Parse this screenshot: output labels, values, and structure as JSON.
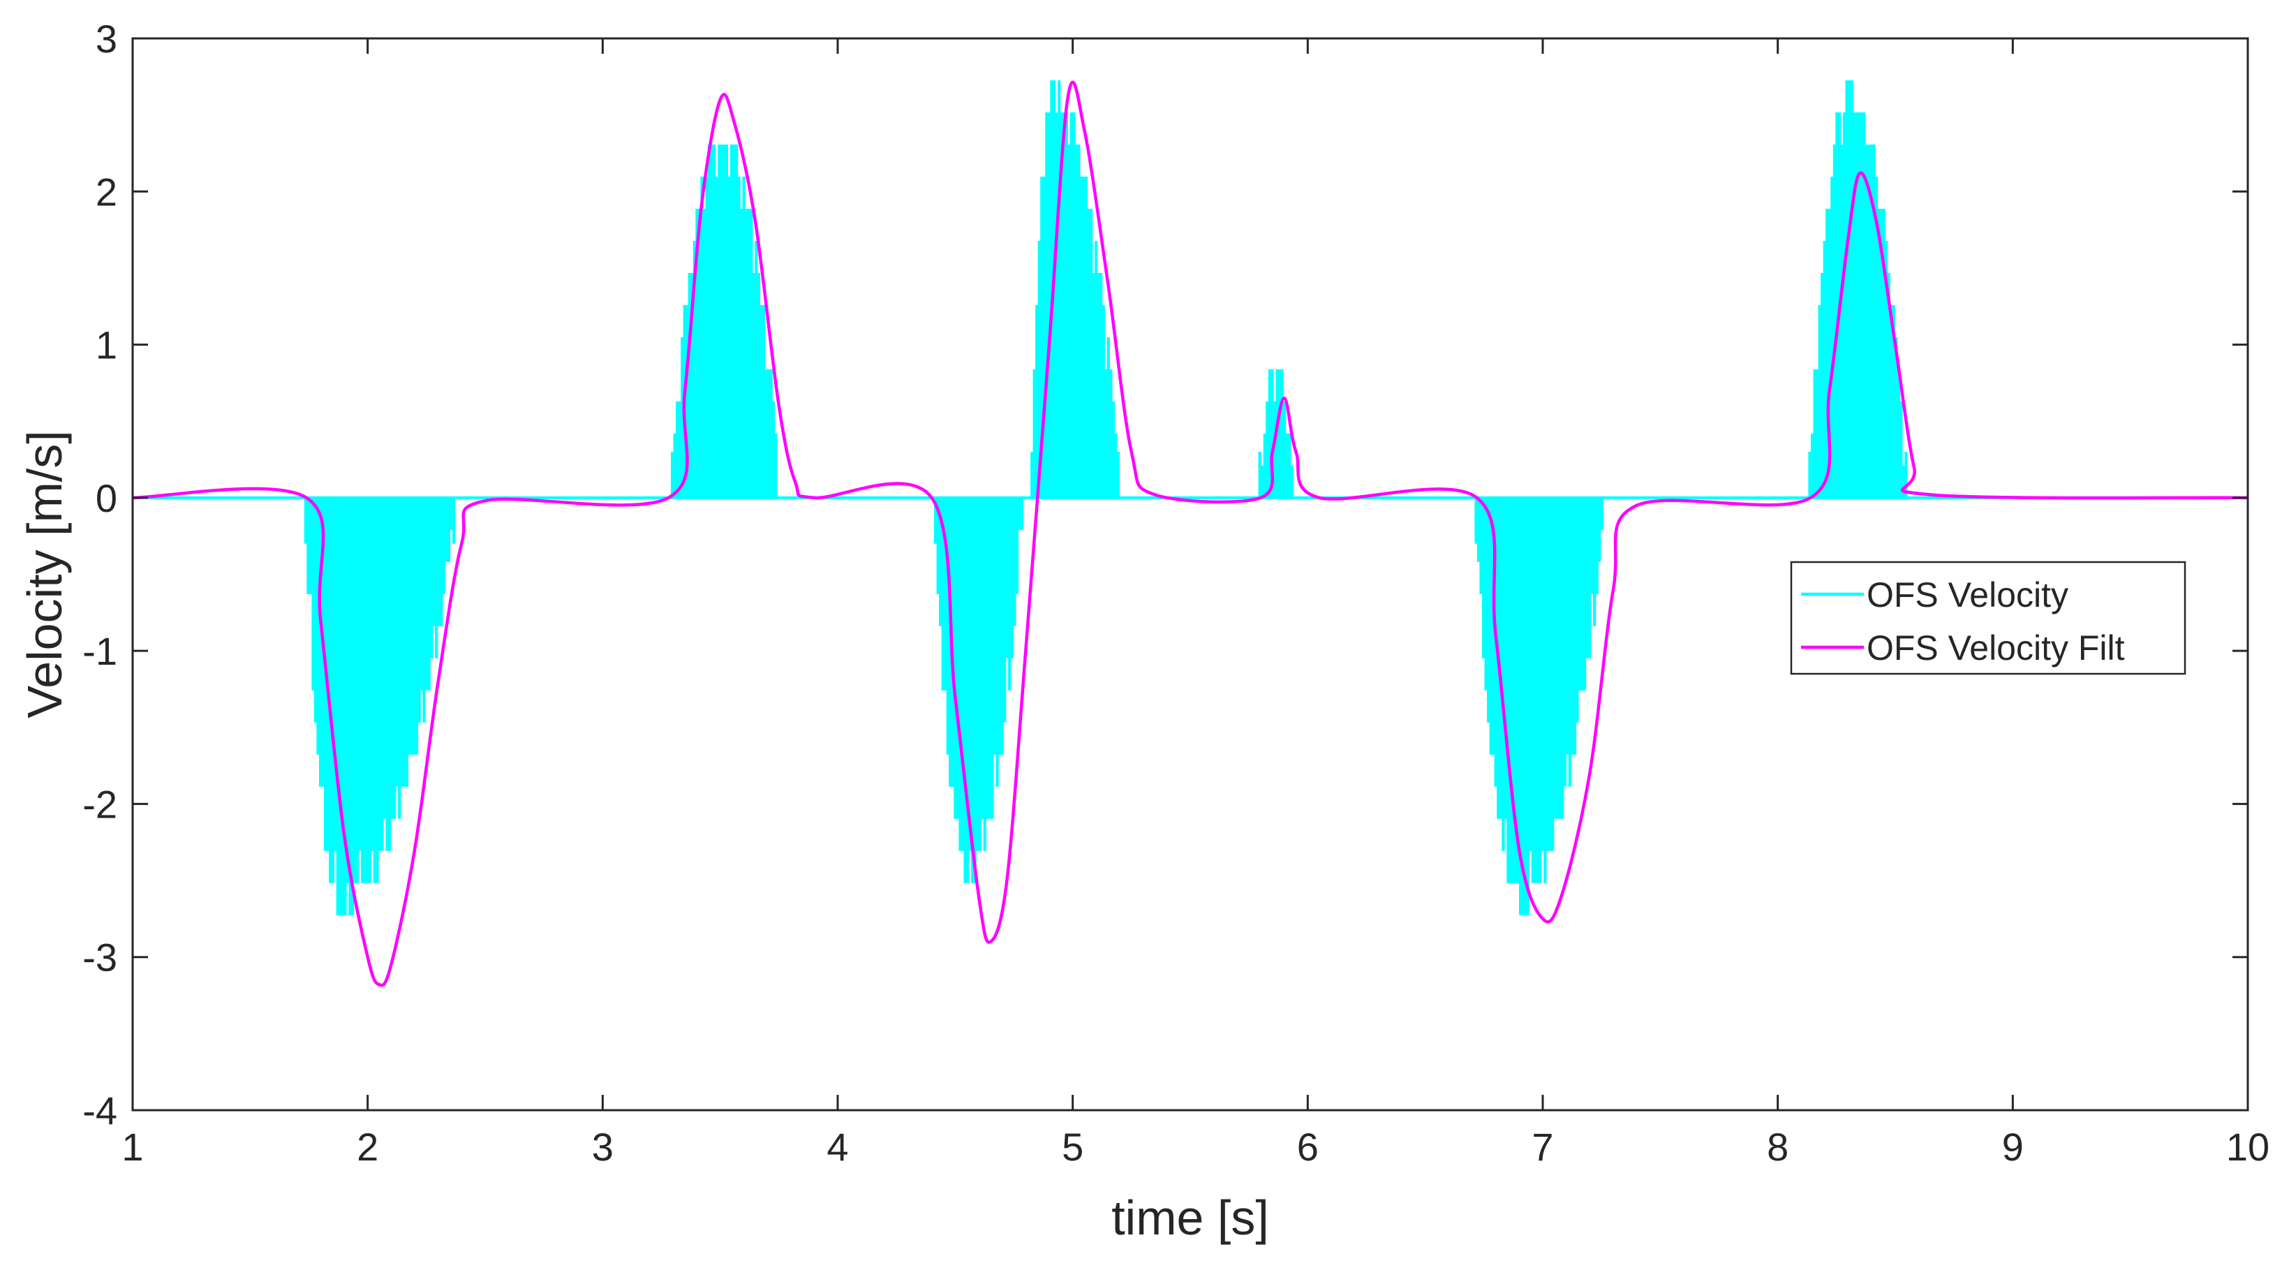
{
  "chart_data": {
    "type": "line",
    "title": "",
    "xlabel": "time [s]",
    "ylabel": "Velocity [m/s]",
    "xlim": [
      1,
      10
    ],
    "ylim": [
      -4,
      3
    ],
    "xticks": [
      1,
      2,
      3,
      4,
      5,
      6,
      7,
      8,
      9,
      10
    ],
    "xtick_labels": [
      "1",
      "2",
      "3",
      "4",
      "5",
      "6",
      "7",
      "8",
      "9",
      "10"
    ],
    "yticks": [
      -4,
      -3,
      -2,
      -1,
      0,
      1,
      2,
      3
    ],
    "ytick_labels": [
      "-4",
      "-3",
      "-2",
      "-1",
      "0",
      "1",
      "2",
      "3"
    ],
    "grid": false,
    "box": true,
    "legend_position": "right",
    "colors": {
      "raw": "#00FFFF",
      "filt": "#FF00FF",
      "axis": "#262626"
    },
    "series": [
      {
        "name": "OFS Velocity",
        "color": "#00FFFF",
        "kind": "raw-fill",
        "note_shape": "piecewise",
        "pulses": [
          {
            "t_start": 1.73,
            "t_end": 2.36,
            "peak": -2.65,
            "t_peak": 1.88
          },
          {
            "t_start": 3.29,
            "t_end": 3.74,
            "peak": 2.36,
            "t_peak": 3.5
          },
          {
            "t_start": 4.41,
            "t_end": 4.78,
            "peak": -2.45,
            "t_peak": 4.55
          },
          {
            "t_start": 4.82,
            "t_end": 5.19,
            "peak": 2.65,
            "t_peak": 4.91
          },
          {
            "t_start": 5.79,
            "t_end": 5.93,
            "peak": 0.88,
            "t_peak": 5.86
          },
          {
            "t_start": 6.71,
            "t_end": 7.25,
            "peak": -2.65,
            "t_peak": 6.9
          },
          {
            "t_start": 8.13,
            "t_end": 8.54,
            "peak": 2.65,
            "t_peak": 8.3
          }
        ]
      },
      {
        "name": "OFS Velocity Filt",
        "color": "#FF00FF",
        "kind": "line",
        "x": [
          1.0,
          1.74,
          1.8,
          1.9,
          2.0,
          2.05,
          2.1,
          2.2,
          2.3,
          2.4,
          2.5,
          3.28,
          3.35,
          3.42,
          3.5,
          3.56,
          3.65,
          3.75,
          3.82,
          3.9,
          4.4,
          4.5,
          4.6,
          4.65,
          4.72,
          4.8,
          4.9,
          4.98,
          5.05,
          5.15,
          5.25,
          5.35,
          5.8,
          5.85,
          5.9,
          5.95,
          6.05,
          6.72,
          6.8,
          6.9,
          7.0,
          7.08,
          7.2,
          7.3,
          7.4,
          8.14,
          8.22,
          8.3,
          8.35,
          8.42,
          8.5,
          8.58,
          8.65,
          10.0
        ],
        "y": [
          0,
          0,
          -0.8,
          -2.2,
          -3.0,
          -3.18,
          -3.05,
          -2.3,
          -1.2,
          -0.3,
          -0.02,
          0,
          0.7,
          1.9,
          2.6,
          2.45,
          1.8,
          0.6,
          0.1,
          0.0,
          0,
          -1.3,
          -2.6,
          -2.9,
          -2.5,
          -1.0,
          1.0,
          2.62,
          2.4,
          1.4,
          0.3,
          0.02,
          0,
          0.3,
          0.65,
          0.3,
          0.0,
          0,
          -0.9,
          -2.3,
          -2.75,
          -2.6,
          -1.8,
          -0.6,
          -0.05,
          0,
          0.7,
          1.7,
          2.12,
          1.8,
          1.0,
          0.2,
          0.02,
          0
        ]
      }
    ]
  }
}
